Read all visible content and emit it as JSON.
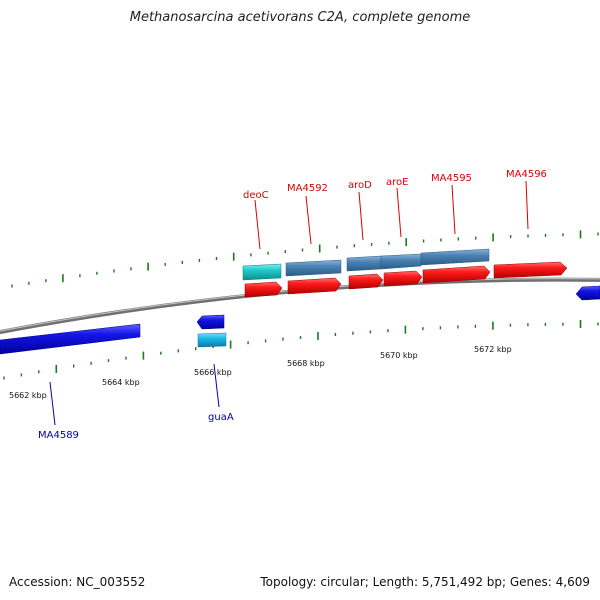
{
  "title": "Methanosarcina acetivorans C2A, complete genome",
  "accession_text": "Accession: NC_003552",
  "summary_text": "Topology: circular; Length: 5,751,492 bp; Genes: 4,609",
  "colors": {
    "forward_gene": "#ee1111",
    "forward_gene_label": "#dd0000",
    "reverse_gene": "#1010e0",
    "reverse_gene_label": "#0000aa",
    "cds_blue": "#4a82b4",
    "cds_cyan": "#20c8c8",
    "cds_lightblue": "#18b8e8",
    "backbone": "#808080",
    "ticks": "#1a7a1a"
  },
  "kbp_labels": [
    "5662 kbp",
    "5664 kbp",
    "5666 kbp",
    "5668 kbp",
    "5670 kbp",
    "5672 kbp"
  ],
  "forward_labels": [
    "deoC",
    "MA4592",
    "aroD",
    "aroE",
    "MA4595",
    "MA4596"
  ],
  "reverse_labels": [
    "MA4589",
    "guaA"
  ]
}
